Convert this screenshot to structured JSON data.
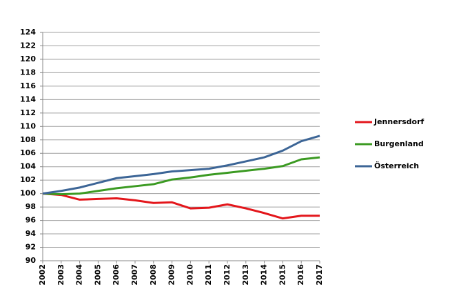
{
  "chart_data": {
    "type": "line",
    "categories": [
      "2002",
      "2003",
      "2004",
      "2005",
      "2006",
      "2007",
      "2008",
      "2009",
      "2010",
      "2011",
      "2012",
      "2013",
      "2014",
      "2015",
      "2016",
      "2017"
    ],
    "series": [
      {
        "name": "Jennersdorf",
        "color": "#e3161b",
        "values": [
          100,
          99.8,
          99.1,
          99.2,
          99.3,
          99.0,
          98.6,
          98.7,
          97.8,
          97.9,
          98.4,
          97.8,
          97.1,
          96.3,
          96.7,
          96.7
        ]
      },
      {
        "name": "Burgenland",
        "color": "#3b9a22",
        "values": [
          100,
          99.9,
          100.0,
          100.4,
          100.8,
          101.1,
          101.4,
          102.1,
          102.4,
          102.8,
          103.1,
          103.4,
          103.7,
          104.1,
          105.1,
          105.4
        ]
      },
      {
        "name": "Österreich",
        "color": "#3c6596",
        "values": [
          100,
          100.4,
          100.9,
          101.6,
          102.3,
          102.6,
          102.9,
          103.3,
          103.5,
          103.7,
          104.2,
          104.8,
          105.4,
          106.4,
          107.8,
          108.6
        ]
      }
    ],
    "ylim": [
      90,
      124
    ],
    "yticks": [
      90,
      92,
      94,
      96,
      98,
      100,
      102,
      104,
      106,
      108,
      110,
      112,
      114,
      116,
      118,
      120,
      122,
      124
    ],
    "grid": true,
    "legend": "right"
  }
}
